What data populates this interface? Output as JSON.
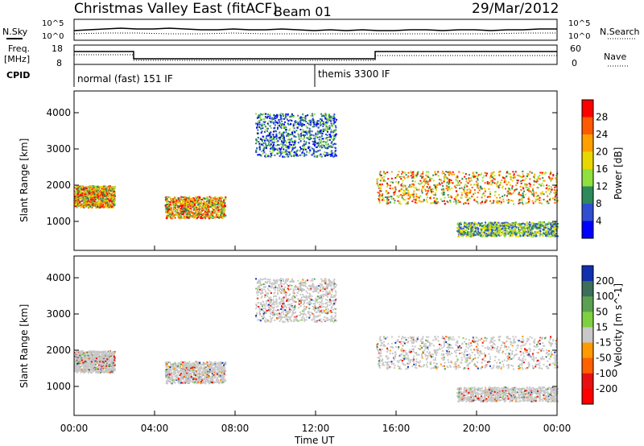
{
  "header": {
    "title": "Christmas Valley East (fitACF)",
    "beam": "Beam 01",
    "date": "29/Mar/2012"
  },
  "noise_panel": {
    "left_label": "N.Sky",
    "right_label": "N.Search",
    "left_ticks": [
      "10^5",
      "10^0"
    ],
    "right_ticks": [
      "10^5",
      "10^0"
    ]
  },
  "freq_panel": {
    "left_label_line1": "Freq.",
    "left_label_line2": "[MHz]",
    "right_label": "Nave",
    "left_ticks": [
      "18",
      "8"
    ],
    "right_ticks": [
      "60",
      "0"
    ]
  },
  "cpid": {
    "label": "CPID",
    "segments": [
      {
        "start_hour": 0,
        "text": "normal (fast) 151 IF"
      },
      {
        "start_hour": 12,
        "text": "themis 3300 IF"
      }
    ]
  },
  "chart_data": [
    {
      "type": "heatmap",
      "name": "power",
      "ylabel": "Slant Range [km]",
      "xlabel": "",
      "xlim_hours": [
        0,
        24
      ],
      "ylim": [
        200,
        4600
      ],
      "yticks": [
        1000,
        2000,
        3000,
        4000
      ],
      "colorbar": {
        "label": "Power [dB]",
        "ticks": [
          "28",
          "24",
          "20",
          "16",
          "12",
          "8",
          "4"
        ],
        "colors": [
          "#ff0000",
          "#ff5a00",
          "#ffa000",
          "#e8d800",
          "#90e040",
          "#2d8a5a",
          "#2f4fd0",
          "#0000ff"
        ]
      },
      "regions": [
        {
          "hours": [
            0,
            2
          ],
          "range_km": [
            1400,
            2000
          ],
          "level": "high"
        },
        {
          "hours": [
            4.5,
            7.5
          ],
          "range_km": [
            1100,
            1700
          ],
          "level": "high"
        },
        {
          "hours": [
            9,
            13
          ],
          "range_km": [
            2800,
            4000
          ],
          "level": "low"
        },
        {
          "hours": [
            15,
            24
          ],
          "range_km": [
            1500,
            2400
          ],
          "level": "high"
        },
        {
          "hours": [
            19,
            24
          ],
          "range_km": [
            600,
            1000
          ],
          "level": "medium"
        }
      ]
    },
    {
      "type": "heatmap",
      "name": "velocity",
      "ylabel": "Slant Range [km]",
      "xlabel": "Time UT",
      "xlim_hours": [
        0,
        24
      ],
      "ylim": [
        200,
        4600
      ],
      "yticks": [
        1000,
        2000,
        3000,
        4000
      ],
      "xticks": [
        "00:00",
        "04:00",
        "08:00",
        "12:00",
        "16:00",
        "20:00",
        "00:00"
      ],
      "colorbar": {
        "label": "Velocity [m s^-1]",
        "ticks": [
          "200",
          "100",
          "50",
          "15",
          "-15",
          "-50",
          "-100",
          "-200"
        ],
        "colors": [
          "#1030b0",
          "#3c6e5a",
          "#5aa050",
          "#7fd040",
          "#c8c8c8",
          "#ff9a00",
          "#ff6000",
          "#e81010",
          "#ff0000"
        ]
      }
    }
  ],
  "colors": {
    "power_high": "#ff6a00",
    "power_low": "#2f4fd0",
    "velocity_ground": "#c8c8c8"
  }
}
